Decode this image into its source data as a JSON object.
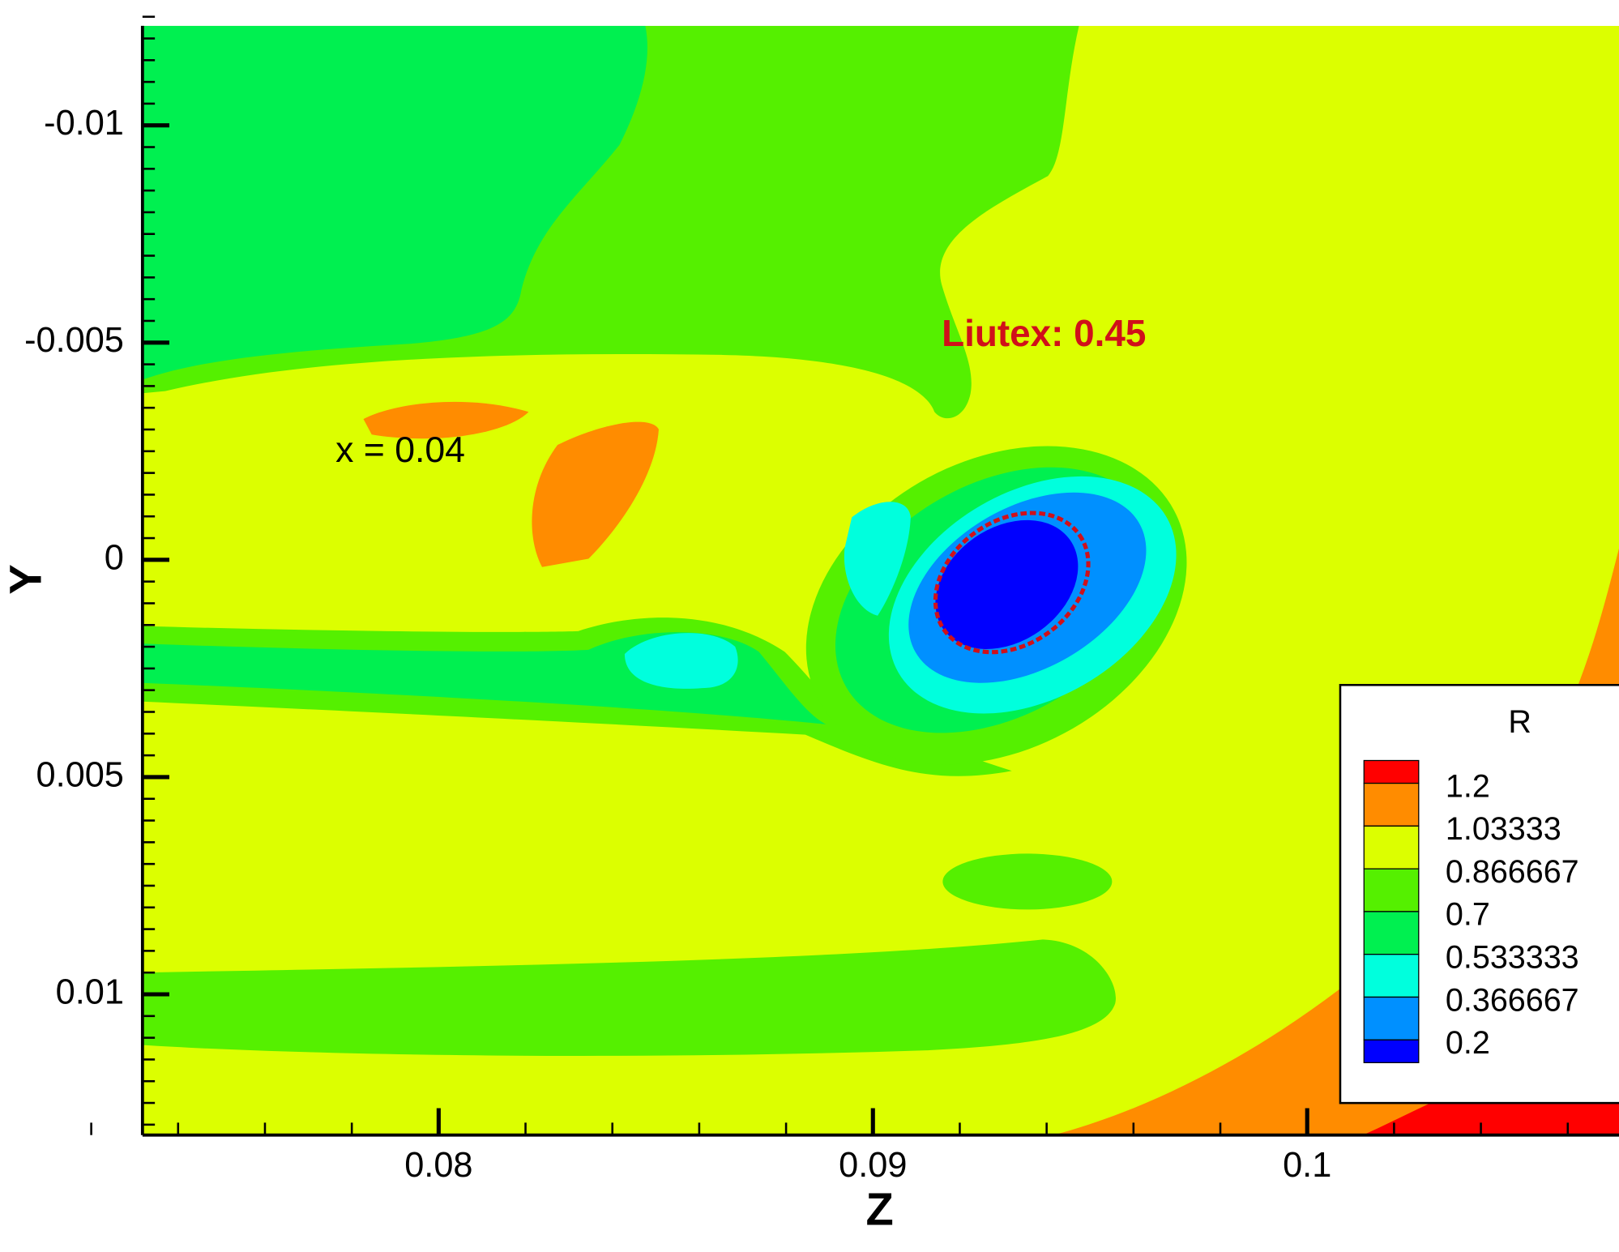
{
  "chart_data": {
    "type": "contour",
    "x_label": "Z",
    "y_label": "Y",
    "xlim": [
      0.07318,
      0.10718
    ],
    "xticks": [
      0.08,
      0.09,
      0.1
    ],
    "ylim": [
      0.01324,
      -0.01229
    ],
    "yticks": [
      -0.01,
      -0.005,
      0,
      0.005,
      0.01
    ],
    "annotations": [
      "Liutex: 0.45",
      "x = 0.04"
    ],
    "legend": {
      "title": "R",
      "levels": [
        1.2,
        1.03333,
        0.866667,
        0.7,
        0.533333,
        0.366667,
        0.2
      ],
      "colors": [
        "#ff0000",
        "#ff8c00",
        "#dcff00",
        "#55f000",
        "#00f050",
        "#00ffdd",
        "#0090ff",
        "#0000ff"
      ]
    }
  }
}
